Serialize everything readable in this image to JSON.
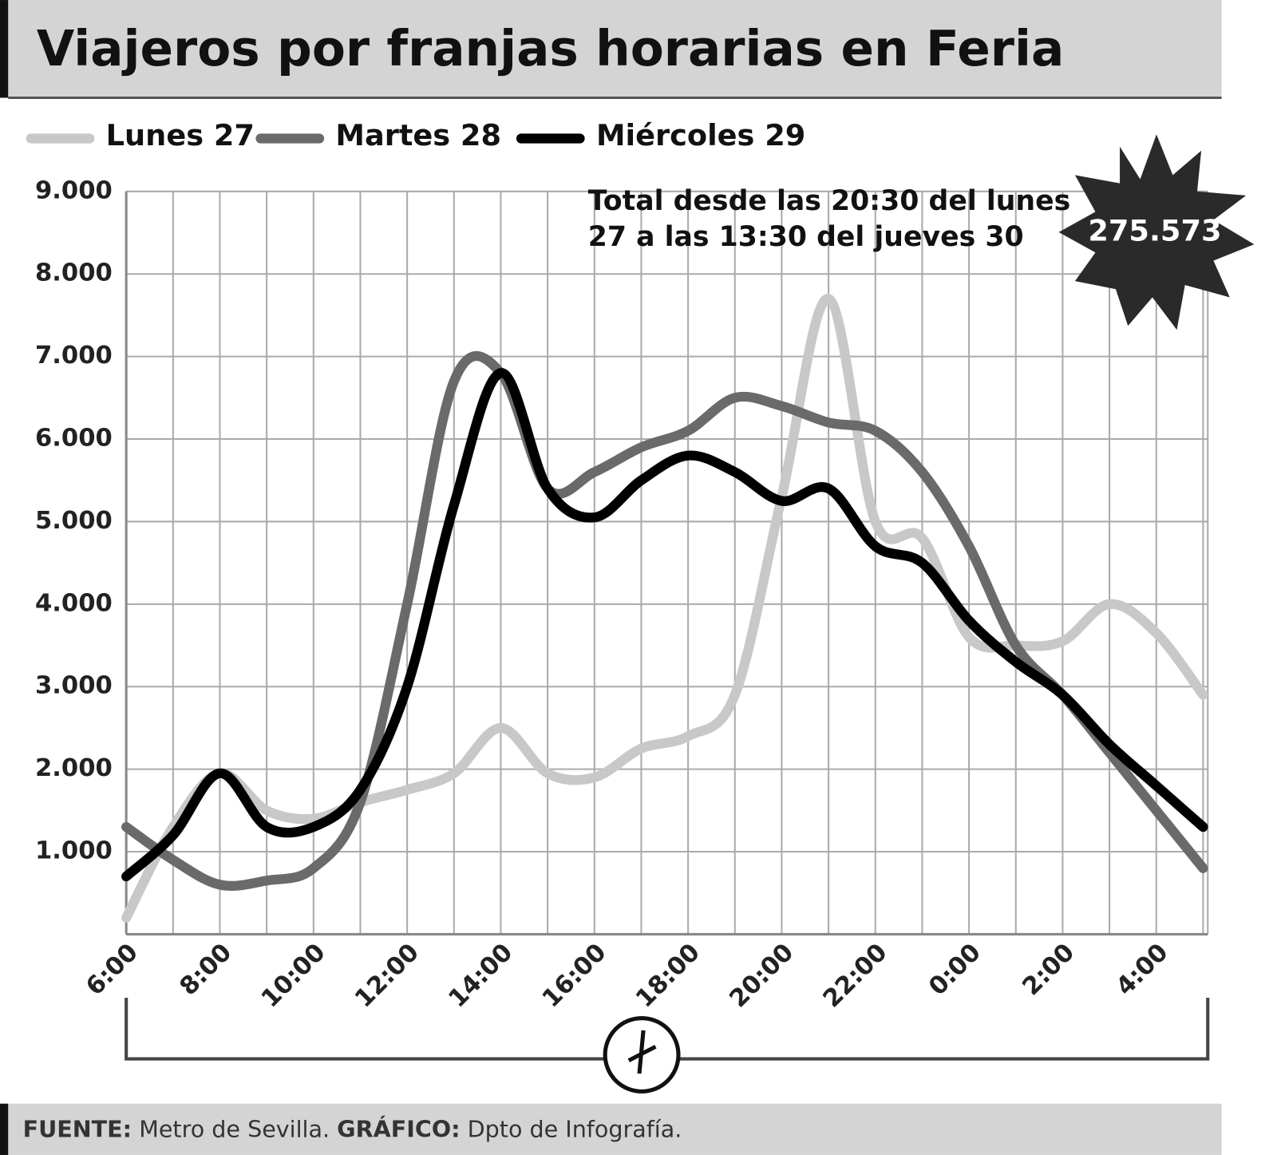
{
  "chart_data": {
    "type": "line",
    "title": "Viajeros por franjas horarias en Feria",
    "categories": [
      "6:00",
      null,
      "8:00",
      null,
      "10:00",
      null,
      "12:00",
      null,
      "14:00",
      null,
      "16:00",
      null,
      "18:00",
      null,
      "20:00",
      null,
      "22:00",
      null,
      "0:00",
      null,
      "2:00",
      null,
      "4:00",
      null
    ],
    "series": [
      {
        "name": "Lunes 27",
        "color": "#c8c8c8",
        "values": [
          200,
          1300,
          1950,
          1500,
          1400,
          1600,
          1750,
          1950,
          2500,
          1950,
          1900,
          2250,
          2400,
          2900,
          5300,
          7700,
          5000,
          4800,
          3600,
          3500,
          3550,
          4000,
          3650,
          2900
        ]
      },
      {
        "name": "Martes 28",
        "color": "#6a6a6a",
        "values": [
          1300,
          900,
          600,
          650,
          800,
          1600,
          4000,
          6700,
          6800,
          5400,
          5600,
          5900,
          6100,
          6500,
          6400,
          6200,
          6100,
          5600,
          4700,
          3500,
          2900,
          2200,
          1500,
          800
        ]
      },
      {
        "name": "Miércoles 29",
        "color": "#000000",
        "values": [
          700,
          1200,
          1950,
          1300,
          1300,
          1750,
          3000,
          5200,
          6800,
          5400,
          5050,
          5500,
          5800,
          5600,
          5250,
          5400,
          4700,
          4500,
          3800,
          3300,
          2900,
          2300,
          1800,
          1300
        ]
      }
    ],
    "ylim": [
      0,
      9000
    ],
    "yticks": [
      {
        "value": 1000,
        "label": "1.000"
      },
      {
        "value": 2000,
        "label": "2.000"
      },
      {
        "value": 3000,
        "label": "3.000"
      },
      {
        "value": 4000,
        "label": "4.000"
      },
      {
        "value": 5000,
        "label": "5.000"
      },
      {
        "value": 6000,
        "label": "6.000"
      },
      {
        "value": 7000,
        "label": "7.000"
      },
      {
        "value": 8000,
        "label": "8.000"
      },
      {
        "value": 9000,
        "label": "9.000"
      }
    ],
    "grid": true,
    "annotation": [
      "Total desde las 20:30 del lunes",
      "27 a las 13:30 del jueves 30"
    ],
    "badge": "275.573",
    "source": {
      "label": "FUENTE:",
      "text": "Metro de Sevilla.",
      "graphic_label": "GRÁFICO:",
      "graphic_text": "Dpto de Infografía."
    }
  }
}
